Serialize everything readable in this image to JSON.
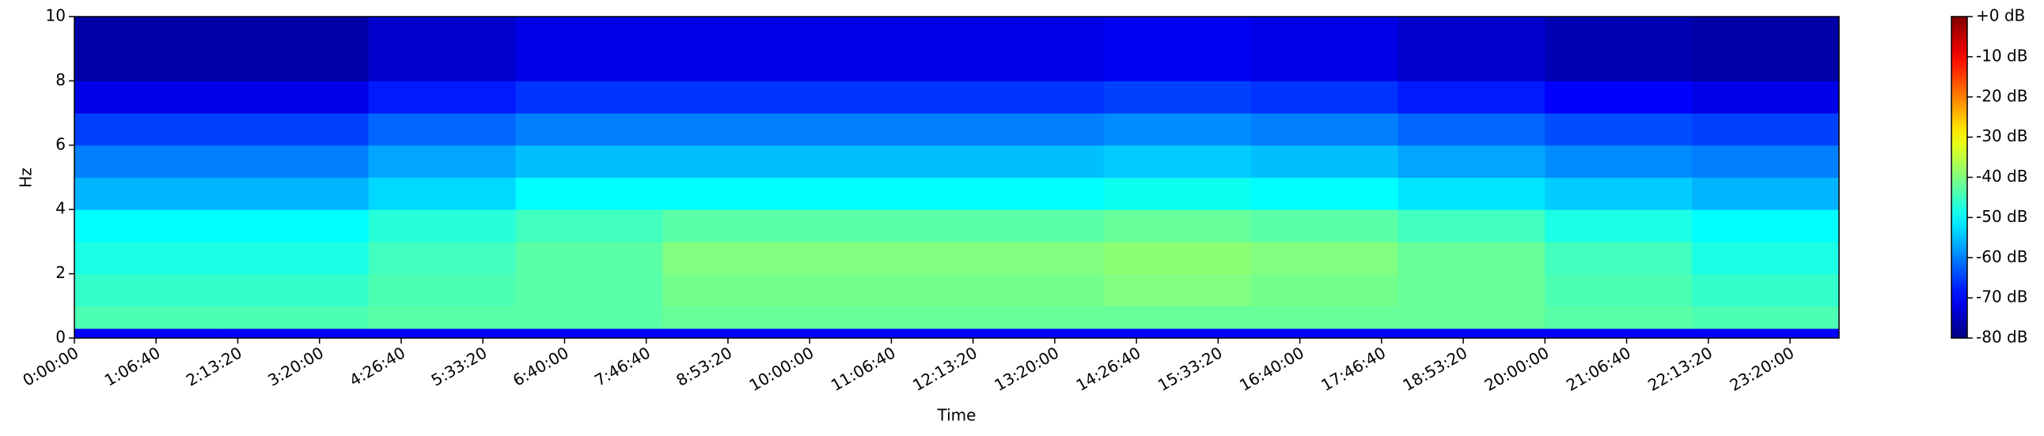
{
  "chart_data": {
    "type": "heatmap",
    "colormap": "jet",
    "xlabel": "Time",
    "ylabel": "Hz",
    "xlim": [
      0,
      86400
    ],
    "ylim": [
      0,
      10
    ],
    "clim": [
      -80,
      0
    ],
    "x_bins": [
      0,
      7200,
      14400,
      21600,
      28800,
      36000,
      43200,
      50400,
      57600,
      64800,
      72000,
      79200,
      86400
    ],
    "y_bins": [
      0,
      0.3,
      1,
      2,
      3,
      4,
      5,
      6,
      7,
      8,
      10
    ],
    "z": [
      [
        -70,
        -70,
        -70,
        -70,
        -70,
        -70,
        -70,
        -70,
        -70,
        -70,
        -70,
        -70
      ],
      [
        -44,
        -44,
        -43,
        -43,
        -42,
        -42,
        -42,
        -42,
        -42,
        -42,
        -43,
        -44
      ],
      [
        -46,
        -46,
        -44,
        -43,
        -41,
        -41,
        -41,
        -40,
        -41,
        -42,
        -44,
        -46
      ],
      [
        -48,
        -48,
        -45,
        -43,
        -40,
        -40,
        -40,
        -39,
        -40,
        -42,
        -45,
        -48
      ],
      [
        -50,
        -50,
        -47,
        -45,
        -43,
        -43,
        -43,
        -42,
        -43,
        -45,
        -48,
        -50
      ],
      [
        -56,
        -56,
        -53,
        -50,
        -50,
        -50,
        -50,
        -49,
        -50,
        -52,
        -54,
        -56
      ],
      [
        -60,
        -60,
        -57,
        -55,
        -55,
        -55,
        -55,
        -54,
        -55,
        -57,
        -59,
        -60
      ],
      [
        -65,
        -65,
        -62,
        -60,
        -60,
        -60,
        -60,
        -59,
        -60,
        -62,
        -64,
        -65
      ],
      [
        -72,
        -72,
        -68,
        -66,
        -66,
        -66,
        -66,
        -65,
        -66,
        -68,
        -70,
        -72
      ],
      [
        -77,
        -77,
        -74,
        -72,
        -72,
        -72,
        -72,
        -71,
        -72,
        -74,
        -76,
        -77
      ]
    ],
    "xticks": [
      {
        "value": 0,
        "label": "0:00:00"
      },
      {
        "value": 4000,
        "label": "1:06:40"
      },
      {
        "value": 8000,
        "label": "2:13:20"
      },
      {
        "value": 12000,
        "label": "3:20:00"
      },
      {
        "value": 16000,
        "label": "4:26:40"
      },
      {
        "value": 20000,
        "label": "5:33:20"
      },
      {
        "value": 24000,
        "label": "6:40:00"
      },
      {
        "value": 28000,
        "label": "7:46:40"
      },
      {
        "value": 32000,
        "label": "8:53:20"
      },
      {
        "value": 36000,
        "label": "10:00:00"
      },
      {
        "value": 40000,
        "label": "11:06:40"
      },
      {
        "value": 44000,
        "label": "12:13:20"
      },
      {
        "value": 48000,
        "label": "13:20:00"
      },
      {
        "value": 52000,
        "label": "14:26:40"
      },
      {
        "value": 56000,
        "label": "15:33:20"
      },
      {
        "value": 60000,
        "label": "16:40:00"
      },
      {
        "value": 64000,
        "label": "17:46:40"
      },
      {
        "value": 68000,
        "label": "18:53:20"
      },
      {
        "value": 72000,
        "label": "20:00:00"
      },
      {
        "value": 76000,
        "label": "21:06:40"
      },
      {
        "value": 80000,
        "label": "22:13:20"
      },
      {
        "value": 84000,
        "label": "23:20:00"
      }
    ],
    "yticks": [
      0,
      2,
      4,
      6,
      8,
      10
    ],
    "cticks": [
      {
        "value": 0,
        "label": "+0 dB"
      },
      {
        "value": -10,
        "label": "-10 dB"
      },
      {
        "value": -20,
        "label": "-20 dB"
      },
      {
        "value": -30,
        "label": "-30 dB"
      },
      {
        "value": -40,
        "label": "-40 dB"
      },
      {
        "value": -50,
        "label": "-50 dB"
      },
      {
        "value": -60,
        "label": "-60 dB"
      },
      {
        "value": -70,
        "label": "-70 dB"
      },
      {
        "value": -80,
        "label": "-80 dB"
      }
    ]
  }
}
